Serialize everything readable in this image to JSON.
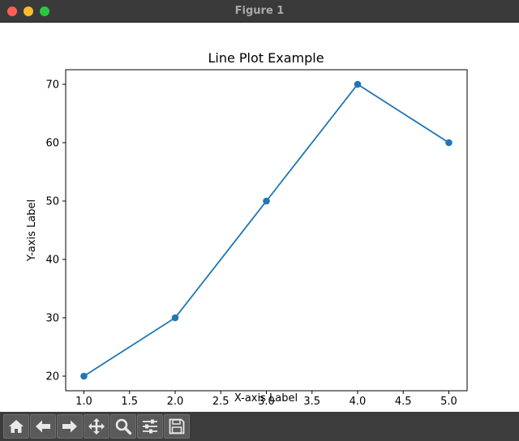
{
  "window": {
    "title": "Figure 1"
  },
  "toolbar": {
    "buttons": [
      {
        "name": "home-button",
        "icon": "home-icon"
      },
      {
        "name": "back-button",
        "icon": "arrow-left-icon"
      },
      {
        "name": "forward-button",
        "icon": "arrow-right-icon"
      },
      {
        "name": "pan-button",
        "icon": "move-icon"
      },
      {
        "name": "zoom-button",
        "icon": "magnifier-icon"
      },
      {
        "name": "configure-subplots-button",
        "icon": "sliders-icon"
      },
      {
        "name": "save-button",
        "icon": "floppy-disk-icon"
      }
    ]
  },
  "chart_data": {
    "type": "line",
    "title": "Line Plot Example",
    "xlabel": "X-axis Label",
    "ylabel": "Y-axis Label",
    "x": [
      1,
      2,
      3,
      4,
      5
    ],
    "series": [
      {
        "values": [
          20,
          30,
          50,
          70,
          60
        ],
        "color": "#1f77b4",
        "marker": "circle"
      }
    ],
    "xlim": [
      0.8,
      5.2
    ],
    "ylim": [
      17.5,
      72.5
    ],
    "xticks": [
      1.0,
      1.5,
      2.0,
      2.5,
      3.0,
      3.5,
      4.0,
      4.5,
      5.0
    ],
    "xtick_labels": [
      "1.0",
      "1.5",
      "2.0",
      "2.5",
      "3.0",
      "3.5",
      "4.0",
      "4.5",
      "5.0"
    ],
    "yticks": [
      20,
      30,
      40,
      50,
      60,
      70
    ],
    "ytick_labels": [
      "20",
      "30",
      "40",
      "50",
      "60",
      "70"
    ],
    "grid": false,
    "legend": false
  }
}
